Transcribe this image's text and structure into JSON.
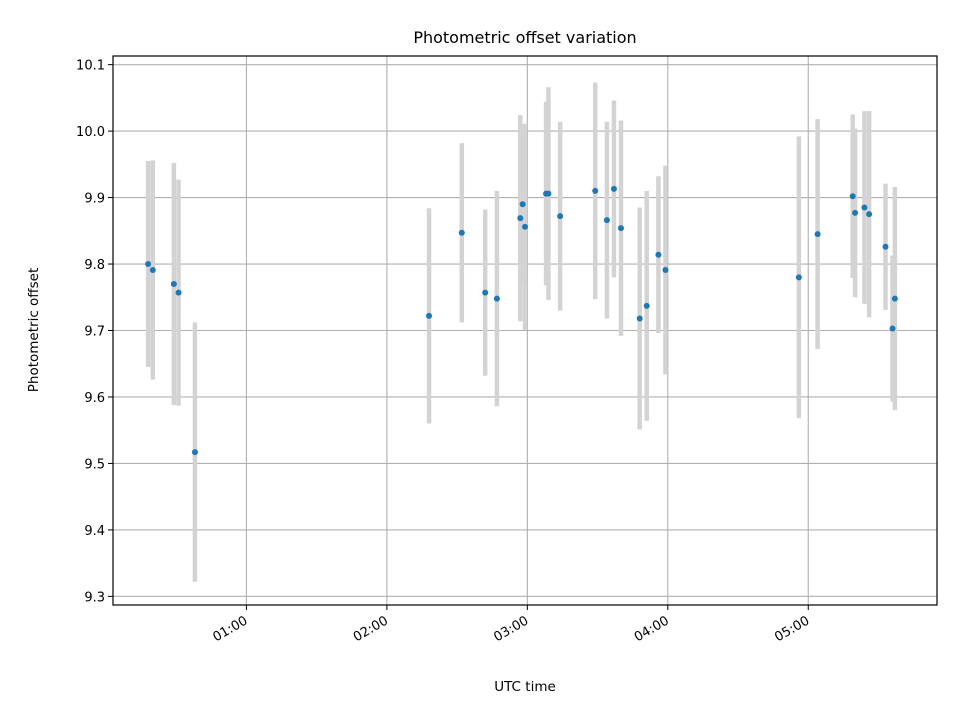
{
  "chart_data": {
    "type": "scatter",
    "title": "Photometric offset variation",
    "xlabel": "UTC time",
    "ylabel": "Photometric offset",
    "xlim": [
      "00:03",
      "05:55"
    ],
    "ylim": [
      9.287,
      10.113
    ],
    "xticks": [
      "01:00",
      "02:00",
      "03:00",
      "04:00",
      "05:00"
    ],
    "yticks": [
      "9.3",
      "9.4",
      "9.5",
      "9.6",
      "9.7",
      "9.8",
      "9.9",
      "10.0",
      "10.1"
    ],
    "grid": true,
    "colors": {
      "marker": "#1f77b4",
      "errorbar": "#d3d3d3",
      "grid": "#b0b0b0"
    },
    "series": [
      {
        "x": [
          "00:18",
          "00:20",
          "00:29",
          "00:31",
          "00:38",
          "02:18",
          "02:32",
          "02:42",
          "02:47",
          "02:57",
          "02:58",
          "02:59",
          "03:08",
          "03:09",
          "03:14",
          "03:29",
          "03:34",
          "03:37",
          "03:40",
          "03:48",
          "03:51",
          "03:56",
          "03:59",
          "04:56",
          "05:04",
          "05:19",
          "05:20",
          "05:24",
          "05:26",
          "05:33",
          "05:36",
          "05:37"
        ],
        "y": [
          9.8,
          9.791,
          9.77,
          9.757,
          9.517,
          9.722,
          9.847,
          9.757,
          9.748,
          9.869,
          9.89,
          9.856,
          9.906,
          9.906,
          9.872,
          9.91,
          9.866,
          9.913,
          9.854,
          9.718,
          9.737,
          9.814,
          9.791,
          9.78,
          9.845,
          9.902,
          9.877,
          9.885,
          9.875,
          9.826,
          9.703,
          9.748
        ],
        "err": [
          0.155,
          0.165,
          0.182,
          0.17,
          0.195,
          0.162,
          0.135,
          0.125,
          0.162,
          0.155,
          0.12,
          0.155,
          0.138,
          0.16,
          0.142,
          0.163,
          0.148,
          0.133,
          0.162,
          0.167,
          0.173,
          0.118,
          0.157,
          0.212,
          0.173,
          0.123,
          0.127,
          0.145,
          0.155,
          0.095,
          0.11,
          0.168
        ]
      }
    ]
  }
}
